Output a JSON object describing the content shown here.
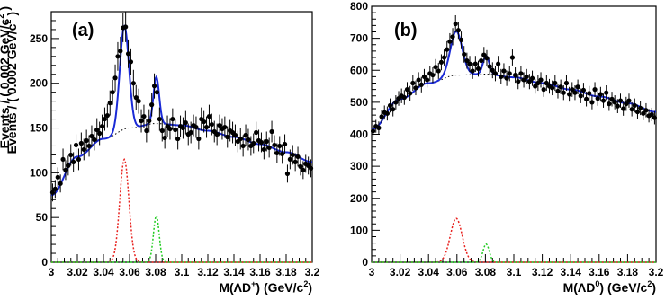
{
  "chart_data": [
    {
      "type": "scatter",
      "panel_label": "(a)",
      "xlabel_main": "M(ΛD",
      "xlabel_sup": "+",
      "xlabel_tail": ") (GeV/c",
      "xlabel_sup2": "2",
      "xlabel_end": ")",
      "ylabel_main": "Events / ( 0.002 GeV/c",
      "ylabel_sup": "2",
      "ylabel_end": " )",
      "xlim": [
        3.0,
        3.2
      ],
      "ylim": [
        0,
        280
      ],
      "xticks": [
        3,
        3.02,
        3.04,
        3.06,
        3.08,
        3.1,
        3.12,
        3.14,
        3.16,
        3.18,
        3.2
      ],
      "xtick_labels": [
        "3",
        "3.02",
        "3.04",
        "3.06",
        "3.08",
        "3.1",
        "3.12",
        "3.14",
        "3.16",
        "3.18",
        "3.2"
      ],
      "yticks": [
        0,
        50,
        100,
        150,
        200,
        250
      ],
      "ytick_labels": [
        "0",
        "50",
        "100",
        "150",
        "200",
        "250"
      ],
      "background": {
        "points": [
          [
            3.0,
            75
          ],
          [
            3.02,
            118
          ],
          [
            3.04,
            138
          ],
          [
            3.06,
            150
          ],
          [
            3.08,
            155
          ],
          [
            3.1,
            153
          ],
          [
            3.12,
            147
          ],
          [
            3.14,
            140
          ],
          [
            3.16,
            132
          ],
          [
            3.18,
            123
          ],
          [
            3.2,
            112
          ]
        ]
      },
      "peaks": [
        {
          "mean": 3.056,
          "sigma": 0.0035,
          "amplitude": 115,
          "color": "#e8201d"
        },
        {
          "mean": 3.0805,
          "sigma": 0.0022,
          "amplitude": 52,
          "color": "#22cc22"
        }
      ],
      "data_points": [
        [
          3.001,
          78,
          10
        ],
        [
          3.003,
          82,
          10
        ],
        [
          3.005,
          95,
          11
        ],
        [
          3.007,
          88,
          10
        ],
        [
          3.009,
          115,
          12
        ],
        [
          3.011,
          103,
          11
        ],
        [
          3.013,
          108,
          11
        ],
        [
          3.015,
          120,
          12
        ],
        [
          3.017,
          112,
          11
        ],
        [
          3.019,
          131,
          12
        ],
        [
          3.021,
          115,
          12
        ],
        [
          3.023,
          133,
          12
        ],
        [
          3.025,
          126,
          12
        ],
        [
          3.027,
          136,
          12
        ],
        [
          3.029,
          130,
          12
        ],
        [
          3.031,
          141,
          12
        ],
        [
          3.033,
          137,
          12
        ],
        [
          3.035,
          148,
          13
        ],
        [
          3.037,
          144,
          13
        ],
        [
          3.039,
          152,
          13
        ],
        [
          3.041,
          160,
          13
        ],
        [
          3.043,
          164,
          13
        ],
        [
          3.045,
          178,
          14
        ],
        [
          3.047,
          190,
          14
        ],
        [
          3.049,
          206,
          15
        ],
        [
          3.051,
          230,
          16
        ],
        [
          3.053,
          236,
          16
        ],
        [
          3.055,
          262,
          16
        ],
        [
          3.057,
          263,
          17
        ],
        [
          3.059,
          233,
          16
        ],
        [
          3.061,
          224,
          15
        ],
        [
          3.063,
          200,
          15
        ],
        [
          3.065,
          184,
          14
        ],
        [
          3.067,
          180,
          14
        ],
        [
          3.069,
          158,
          13
        ],
        [
          3.071,
          163,
          13
        ],
        [
          3.073,
          147,
          13
        ],
        [
          3.075,
          158,
          13
        ],
        [
          3.077,
          176,
          13
        ],
        [
          3.079,
          197,
          14
        ],
        [
          3.081,
          190,
          14
        ],
        [
          3.083,
          160,
          13
        ],
        [
          3.085,
          147,
          12
        ],
        [
          3.087,
          139,
          12
        ],
        [
          3.089,
          152,
          12
        ],
        [
          3.091,
          149,
          12
        ],
        [
          3.093,
          160,
          12
        ],
        [
          3.095,
          148,
          12
        ],
        [
          3.097,
          138,
          12
        ],
        [
          3.099,
          152,
          12
        ],
        [
          3.101,
          150,
          12
        ],
        [
          3.103,
          156,
          13
        ],
        [
          3.105,
          143,
          12
        ],
        [
          3.107,
          145,
          12
        ],
        [
          3.109,
          153,
          12
        ],
        [
          3.111,
          151,
          12
        ],
        [
          3.113,
          138,
          12
        ],
        [
          3.115,
          160,
          13
        ],
        [
          3.117,
          157,
          12
        ],
        [
          3.119,
          151,
          12
        ],
        [
          3.121,
          163,
          13
        ],
        [
          3.123,
          154,
          12
        ],
        [
          3.125,
          146,
          12
        ],
        [
          3.127,
          143,
          12
        ],
        [
          3.129,
          153,
          12
        ],
        [
          3.131,
          149,
          12
        ],
        [
          3.133,
          151,
          12
        ],
        [
          3.135,
          140,
          12
        ],
        [
          3.137,
          147,
          12
        ],
        [
          3.139,
          145,
          12
        ],
        [
          3.141,
          142,
          12
        ],
        [
          3.143,
          135,
          12
        ],
        [
          3.145,
          138,
          12
        ],
        [
          3.147,
          130,
          12
        ],
        [
          3.149,
          142,
          12
        ],
        [
          3.151,
          137,
          12
        ],
        [
          3.153,
          130,
          11
        ],
        [
          3.155,
          133,
          11
        ],
        [
          3.157,
          145,
          12
        ],
        [
          3.159,
          136,
          12
        ],
        [
          3.161,
          134,
          11
        ],
        [
          3.163,
          126,
          11
        ],
        [
          3.165,
          135,
          11
        ],
        [
          3.167,
          128,
          11
        ],
        [
          3.169,
          146,
          12
        ],
        [
          3.171,
          131,
          11
        ],
        [
          3.173,
          122,
          11
        ],
        [
          3.175,
          130,
          11
        ],
        [
          3.177,
          121,
          11
        ],
        [
          3.179,
          132,
          11
        ],
        [
          3.181,
          99,
          10
        ],
        [
          3.183,
          115,
          11
        ],
        [
          3.185,
          120,
          11
        ],
        [
          3.187,
          112,
          10
        ],
        [
          3.189,
          118,
          11
        ],
        [
          3.191,
          107,
          10
        ],
        [
          3.193,
          103,
          10
        ],
        [
          3.195,
          110,
          10
        ],
        [
          3.197,
          108,
          10
        ],
        [
          3.199,
          105,
          10
        ]
      ]
    },
    {
      "type": "scatter",
      "panel_label": "(b)",
      "xlabel_main": "M(ΛD",
      "xlabel_sup": "0",
      "xlabel_tail": ") (GeV/c",
      "xlabel_sup2": "2",
      "xlabel_end": ")",
      "ylabel_main": "Events / ( 0.002 GeV/c",
      "ylabel_sup": "2",
      "ylabel_end": " )",
      "xlim": [
        3.0,
        3.2
      ],
      "ylim": [
        0,
        800
      ],
      "xticks": [
        3,
        3.02,
        3.04,
        3.06,
        3.08,
        3.1,
        3.12,
        3.14,
        3.16,
        3.18,
        3.2
      ],
      "xtick_labels": [
        "3",
        "3.02",
        "3.04",
        "3.06",
        "3.08",
        "3.1",
        "3.12",
        "3.14",
        "3.16",
        "3.18",
        "3.2"
      ],
      "yticks": [
        0,
        100,
        200,
        300,
        400,
        500,
        600,
        700,
        800
      ],
      "ytick_labels": [
        "0",
        "100",
        "200",
        "300",
        "400",
        "500",
        "600",
        "700",
        "800"
      ],
      "background": {
        "points": [
          [
            3.0,
            415
          ],
          [
            3.02,
            510
          ],
          [
            3.04,
            560
          ],
          [
            3.06,
            585
          ],
          [
            3.08,
            588
          ],
          [
            3.1,
            578
          ],
          [
            3.12,
            560
          ],
          [
            3.14,
            540
          ],
          [
            3.16,
            518
          ],
          [
            3.18,
            497
          ],
          [
            3.2,
            470
          ]
        ]
      },
      "peaks": [
        {
          "mean": 3.0595,
          "sigma": 0.0042,
          "amplitude": 137,
          "color": "#e8201d"
        },
        {
          "mean": 3.0805,
          "sigma": 0.0022,
          "amplitude": 57,
          "color": "#22cc22"
        }
      ],
      "data_points": [
        [
          3.001,
          410,
          20
        ],
        [
          3.003,
          425,
          20
        ],
        [
          3.005,
          420,
          20
        ],
        [
          3.007,
          455,
          21
        ],
        [
          3.009,
          468,
          22
        ],
        [
          3.011,
          465,
          22
        ],
        [
          3.013,
          490,
          22
        ],
        [
          3.015,
          478,
          22
        ],
        [
          3.017,
          500,
          22
        ],
        [
          3.019,
          512,
          23
        ],
        [
          3.021,
          520,
          23
        ],
        [
          3.023,
          515,
          23
        ],
        [
          3.025,
          540,
          23
        ],
        [
          3.027,
          528,
          23
        ],
        [
          3.029,
          560,
          24
        ],
        [
          3.031,
          545,
          23
        ],
        [
          3.033,
          570,
          24
        ],
        [
          3.035,
          555,
          24
        ],
        [
          3.037,
          580,
          24
        ],
        [
          3.039,
          570,
          24
        ],
        [
          3.041,
          590,
          24
        ],
        [
          3.043,
          585,
          24
        ],
        [
          3.045,
          610,
          25
        ],
        [
          3.047,
          598,
          25
        ],
        [
          3.049,
          625,
          25
        ],
        [
          3.051,
          640,
          25
        ],
        [
          3.053,
          665,
          26
        ],
        [
          3.055,
          690,
          26
        ],
        [
          3.057,
          705,
          27
        ],
        [
          3.059,
          745,
          27
        ],
        [
          3.061,
          725,
          27
        ],
        [
          3.063,
          695,
          26
        ],
        [
          3.065,
          650,
          26
        ],
        [
          3.067,
          630,
          25
        ],
        [
          3.069,
          620,
          25
        ],
        [
          3.071,
          598,
          25
        ],
        [
          3.073,
          620,
          25
        ],
        [
          3.075,
          605,
          25
        ],
        [
          3.077,
          630,
          25
        ],
        [
          3.079,
          648,
          25
        ],
        [
          3.081,
          638,
          25
        ],
        [
          3.083,
          612,
          25
        ],
        [
          3.085,
          600,
          25
        ],
        [
          3.087,
          590,
          24
        ],
        [
          3.089,
          620,
          25
        ],
        [
          3.091,
          580,
          24
        ],
        [
          3.093,
          598,
          24
        ],
        [
          3.095,
          575,
          24
        ],
        [
          3.097,
          590,
          24
        ],
        [
          3.099,
          640,
          25
        ],
        [
          3.101,
          585,
          24
        ],
        [
          3.103,
          565,
          24
        ],
        [
          3.105,
          590,
          24
        ],
        [
          3.107,
          570,
          24
        ],
        [
          3.109,
          580,
          24
        ],
        [
          3.111,
          565,
          24
        ],
        [
          3.113,
          575,
          24
        ],
        [
          3.115,
          550,
          23
        ],
        [
          3.117,
          560,
          24
        ],
        [
          3.119,
          570,
          24
        ],
        [
          3.121,
          540,
          23
        ],
        [
          3.123,
          560,
          24
        ],
        [
          3.125,
          550,
          23
        ],
        [
          3.127,
          545,
          23
        ],
        [
          3.129,
          560,
          24
        ],
        [
          3.131,
          535,
          23
        ],
        [
          3.133,
          548,
          23
        ],
        [
          3.135,
          530,
          23
        ],
        [
          3.137,
          560,
          24
        ],
        [
          3.139,
          525,
          23
        ],
        [
          3.141,
          540,
          23
        ],
        [
          3.143,
          530,
          23
        ],
        [
          3.145,
          548,
          23
        ],
        [
          3.147,
          520,
          23
        ],
        [
          3.149,
          538,
          23
        ],
        [
          3.151,
          510,
          23
        ],
        [
          3.153,
          528,
          23
        ],
        [
          3.155,
          500,
          22
        ],
        [
          3.157,
          540,
          23
        ],
        [
          3.159,
          512,
          23
        ],
        [
          3.161,
          525,
          23
        ],
        [
          3.163,
          505,
          22
        ],
        [
          3.165,
          530,
          23
        ],
        [
          3.167,
          495,
          22
        ],
        [
          3.169,
          510,
          23
        ],
        [
          3.171,
          500,
          22
        ],
        [
          3.173,
          488,
          22
        ],
        [
          3.175,
          505,
          22
        ],
        [
          3.177,
          480,
          22
        ],
        [
          3.179,
          495,
          22
        ],
        [
          3.181,
          505,
          22
        ],
        [
          3.183,
          478,
          22
        ],
        [
          3.185,
          490,
          22
        ],
        [
          3.187,
          470,
          22
        ],
        [
          3.189,
          482,
          22
        ],
        [
          3.191,
          465,
          21
        ],
        [
          3.193,
          475,
          22
        ],
        [
          3.195,
          458,
          21
        ],
        [
          3.197,
          462,
          21
        ],
        [
          3.199,
          452,
          21
        ]
      ]
    }
  ],
  "colors": {
    "total_fit": "#1a2ad6",
    "background_fit": "#000000",
    "data": "#000000"
  }
}
